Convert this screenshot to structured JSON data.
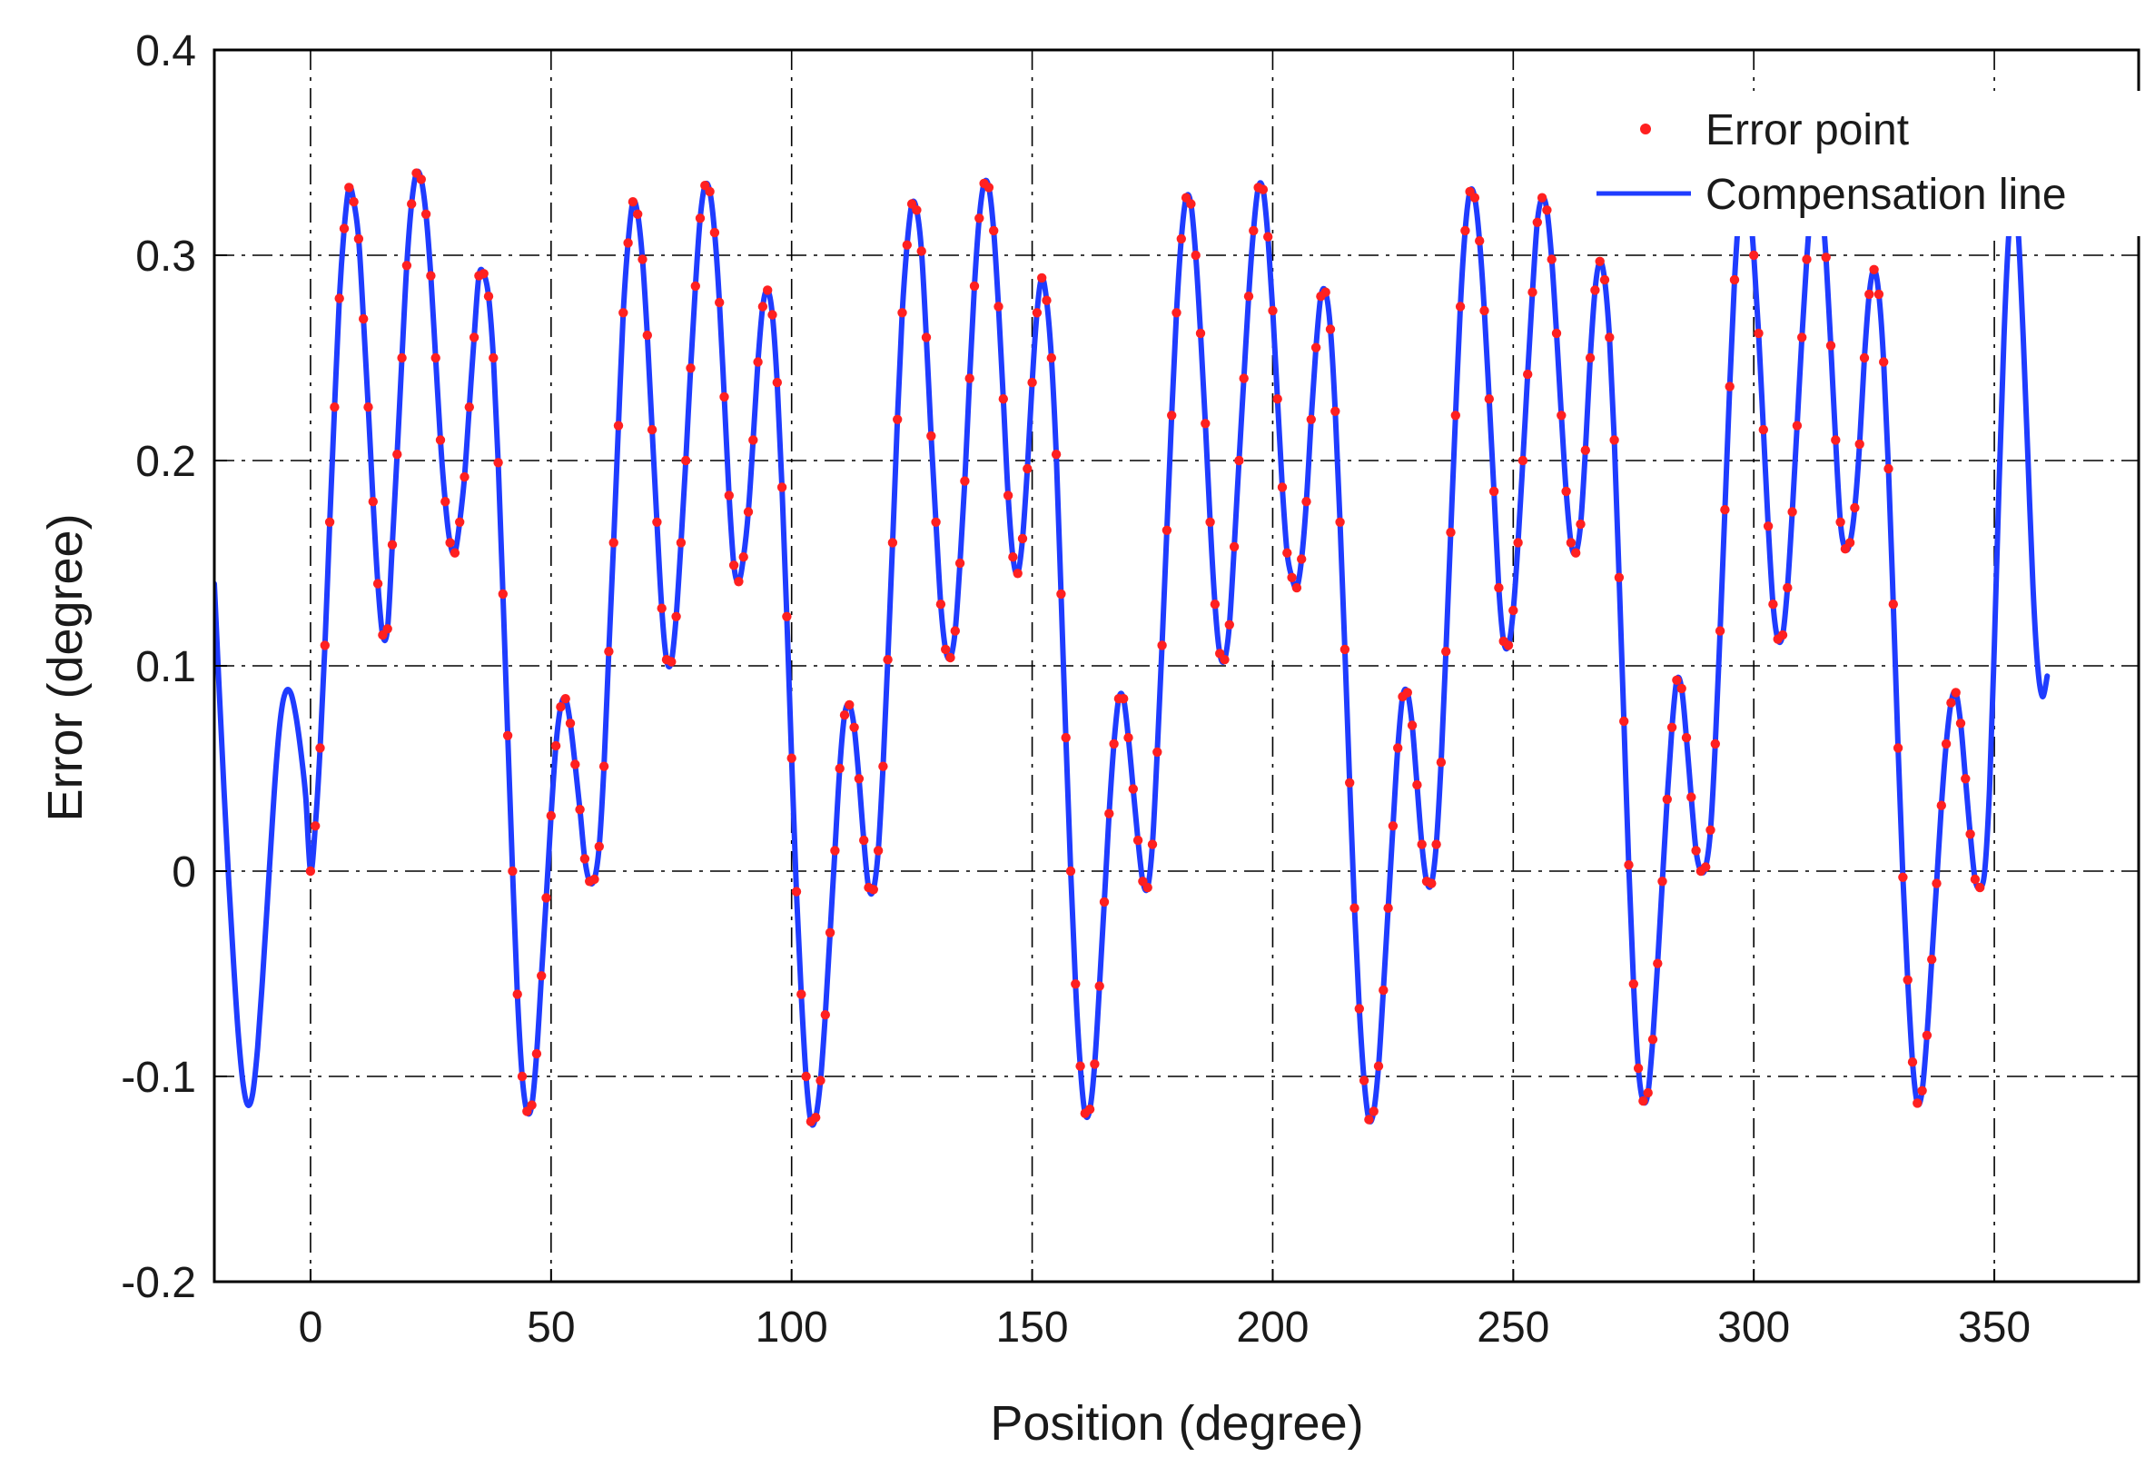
{
  "chart_data": {
    "type": "line",
    "title": "",
    "xlabel": "Position (degree)",
    "ylabel": "Error (degree)",
    "xlim": [
      -20,
      380
    ],
    "ylim": [
      -0.2,
      0.4
    ],
    "xticks": [
      0,
      50,
      100,
      150,
      200,
      250,
      300,
      350
    ],
    "xtick_labels": [
      "0",
      "50",
      "100",
      "150",
      "200",
      "250",
      "300",
      "350"
    ],
    "yticks": [
      -0.2,
      -0.1,
      0,
      0.1,
      0.2,
      0.3,
      0.4
    ],
    "ytick_labels": [
      "-0.2",
      "-0.1",
      "0",
      "0.1",
      "0.2",
      "0.3",
      "0.4"
    ],
    "grid": true,
    "grid_style": "dash-dot",
    "legend": {
      "position": "top-right",
      "entries": [
        "Error point",
        "Compensation line"
      ]
    },
    "series": [
      {
        "name": "Error point",
        "kind": "scatter",
        "color": "#ff2020",
        "x_start": 0,
        "x_step": 1,
        "values": [
          0.0,
          0.022,
          0.06,
          0.11,
          0.17,
          0.226,
          0.279,
          0.313,
          0.333,
          0.326,
          0.308,
          0.269,
          0.226,
          0.18,
          0.14,
          0.115,
          0.118,
          0.159,
          0.203,
          0.25,
          0.295,
          0.325,
          0.34,
          0.337,
          0.32,
          0.29,
          0.25,
          0.21,
          0.18,
          0.16,
          0.155,
          0.17,
          0.192,
          0.226,
          0.26,
          0.29,
          0.291,
          0.28,
          0.25,
          0.199,
          0.135,
          0.066,
          0.0,
          -0.06,
          -0.1,
          -0.117,
          -0.114,
          -0.089,
          -0.051,
          -0.013,
          0.027,
          0.061,
          0.08,
          0.084,
          0.072,
          0.052,
          0.03,
          0.006,
          -0.005,
          -0.004,
          0.012,
          0.051,
          0.107,
          0.16,
          0.217,
          0.272,
          0.306,
          0.326,
          0.32,
          0.298,
          0.261,
          0.215,
          0.17,
          0.128,
          0.103,
          0.102,
          0.124,
          0.16,
          0.2,
          0.245,
          0.285,
          0.318,
          0.334,
          0.331,
          0.311,
          0.277,
          0.231,
          0.183,
          0.149,
          0.141,
          0.153,
          0.175,
          0.21,
          0.248,
          0.275,
          0.283,
          0.271,
          0.238,
          0.187,
          0.124,
          0.055,
          -0.01,
          -0.06,
          -0.1,
          -0.122,
          -0.12,
          -0.102,
          -0.07,
          -0.03,
          0.01,
          0.05,
          0.076,
          0.081,
          0.07,
          0.045,
          0.015,
          -0.008,
          -0.009,
          0.01,
          0.051,
          0.103,
          0.16,
          0.22,
          0.272,
          0.305,
          0.325,
          0.322,
          0.302,
          0.26,
          0.212,
          0.17,
          0.13,
          0.108,
          0.104,
          0.117,
          0.15,
          0.19,
          0.24,
          0.285,
          0.318,
          0.335,
          0.333,
          0.312,
          0.275,
          0.23,
          0.183,
          0.153,
          0.145,
          0.162,
          0.196,
          0.238,
          0.272,
          0.289,
          0.278,
          0.25,
          0.203,
          0.135,
          0.065,
          0.0,
          -0.055,
          -0.095,
          -0.118,
          -0.116,
          -0.094,
          -0.056,
          -0.015,
          0.028,
          0.062,
          0.084,
          0.084,
          0.065,
          0.04,
          0.015,
          -0.005,
          -0.008,
          0.013,
          0.058,
          0.11,
          0.166,
          0.222,
          0.272,
          0.308,
          0.328,
          0.325,
          0.3,
          0.262,
          0.218,
          0.17,
          0.13,
          0.106,
          0.103,
          0.12,
          0.158,
          0.2,
          0.24,
          0.28,
          0.312,
          0.333,
          0.332,
          0.309,
          0.273,
          0.23,
          0.187,
          0.155,
          0.143,
          0.138,
          0.152,
          0.18,
          0.22,
          0.255,
          0.28,
          0.282,
          0.264,
          0.224,
          0.17,
          0.108,
          0.043,
          -0.018,
          -0.067,
          -0.102,
          -0.121,
          -0.117,
          -0.095,
          -0.058,
          -0.018,
          0.022,
          0.06,
          0.085,
          0.087,
          0.071,
          0.042,
          0.013,
          -0.005,
          -0.006,
          0.013,
          0.053,
          0.107,
          0.165,
          0.222,
          0.275,
          0.312,
          0.331,
          0.328,
          0.307,
          0.273,
          0.23,
          0.185,
          0.138,
          0.112,
          0.11,
          0.127,
          0.16,
          0.2,
          0.242,
          0.282,
          0.316,
          0.328,
          0.322,
          0.298,
          0.262,
          0.222,
          0.185,
          0.16,
          0.155,
          0.169,
          0.205,
          0.25,
          0.283,
          0.297,
          0.288,
          0.26,
          0.21,
          0.143,
          0.073,
          0.003,
          -0.055,
          -0.096,
          -0.112,
          -0.108,
          -0.082,
          -0.045,
          -0.005,
          0.035,
          0.07,
          0.093,
          0.089,
          0.065,
          0.036,
          0.01,
          0.0,
          0.002,
          0.02,
          0.062,
          0.117,
          0.176,
          0.236,
          0.288,
          0.322,
          0.336,
          0.328,
          0.3,
          0.262,
          0.215,
          0.168,
          0.13,
          0.113,
          0.115,
          0.138,
          0.175,
          0.217,
          0.26,
          0.298,
          0.326,
          0.336,
          0.328,
          0.299,
          0.256,
          0.21,
          0.17,
          0.157,
          0.16,
          0.177,
          0.208,
          0.25,
          0.281,
          0.293,
          0.281,
          0.248,
          0.196,
          0.13,
          0.06,
          -0.003,
          -0.053,
          -0.093,
          -0.113,
          -0.107,
          -0.08,
          -0.043,
          -0.006,
          0.032,
          0.062,
          0.082,
          0.087,
          0.072,
          0.045,
          0.018,
          -0.004,
          -0.008
        ]
      },
      {
        "name": "Compensation line",
        "kind": "line",
        "color": "#1f3cff",
        "x_start": -20,
        "x_step": 1,
        "values": [
          0.14,
          0.089,
          0.04,
          -0.005,
          -0.045,
          -0.08,
          -0.104,
          -0.114,
          -0.108,
          -0.086,
          -0.053,
          -0.016,
          0.022,
          0.056,
          0.079,
          0.088,
          0.086,
          0.075,
          0.058,
          0.036,
          0.0,
          0.022,
          0.06,
          0.11,
          0.17,
          0.226,
          0.279,
          0.313,
          0.333,
          0.326,
          0.308,
          0.269,
          0.226,
          0.18,
          0.14,
          0.115,
          0.118,
          0.159,
          0.203,
          0.25,
          0.295,
          0.325,
          0.34,
          0.337,
          0.32,
          0.29,
          0.25,
          0.21,
          0.18,
          0.16,
          0.155,
          0.17,
          0.192,
          0.226,
          0.26,
          0.29,
          0.291,
          0.28,
          0.25,
          0.199,
          0.135,
          0.066,
          0.0,
          -0.06,
          -0.1,
          -0.117,
          -0.114,
          -0.089,
          -0.051,
          -0.013,
          0.027,
          0.061,
          0.08,
          0.084,
          0.072,
          0.052,
          0.03,
          0.006,
          -0.005,
          -0.004,
          0.012,
          0.051,
          0.107,
          0.16,
          0.217,
          0.272,
          0.306,
          0.326,
          0.32,
          0.298,
          0.261,
          0.215,
          0.17,
          0.128,
          0.103,
          0.102,
          0.124,
          0.16,
          0.2,
          0.245,
          0.285,
          0.318,
          0.334,
          0.331,
          0.311,
          0.277,
          0.231,
          0.183,
          0.149,
          0.141,
          0.153,
          0.175,
          0.21,
          0.248,
          0.275,
          0.283,
          0.271,
          0.238,
          0.187,
          0.124,
          0.055,
          -0.01,
          -0.06,
          -0.1,
          -0.122,
          -0.12,
          -0.102,
          -0.07,
          -0.03,
          0.01,
          0.05,
          0.076,
          0.081,
          0.07,
          0.045,
          0.015,
          -0.008,
          -0.009,
          0.01,
          0.051,
          0.103,
          0.16,
          0.22,
          0.272,
          0.305,
          0.325,
          0.322,
          0.302,
          0.26,
          0.212,
          0.17,
          0.13,
          0.108,
          0.104,
          0.117,
          0.15,
          0.19,
          0.24,
          0.285,
          0.318,
          0.335,
          0.333,
          0.312,
          0.275,
          0.23,
          0.183,
          0.153,
          0.145,
          0.162,
          0.196,
          0.238,
          0.272,
          0.289,
          0.278,
          0.25,
          0.203,
          0.135,
          0.065,
          0.0,
          -0.055,
          -0.095,
          -0.118,
          -0.116,
          -0.094,
          -0.056,
          -0.015,
          0.028,
          0.062,
          0.084,
          0.084,
          0.065,
          0.04,
          0.015,
          -0.005,
          -0.008,
          0.013,
          0.058,
          0.11,
          0.166,
          0.222,
          0.272,
          0.308,
          0.328,
          0.325,
          0.3,
          0.262,
          0.218,
          0.17,
          0.13,
          0.106,
          0.103,
          0.12,
          0.158,
          0.2,
          0.24,
          0.28,
          0.312,
          0.333,
          0.332,
          0.309,
          0.273,
          0.23,
          0.187,
          0.155,
          0.143,
          0.138,
          0.152,
          0.18,
          0.22,
          0.255,
          0.28,
          0.282,
          0.264,
          0.224,
          0.17,
          0.108,
          0.043,
          -0.018,
          -0.067,
          -0.102,
          -0.121,
          -0.117,
          -0.095,
          -0.058,
          -0.018,
          0.022,
          0.06,
          0.085,
          0.087,
          0.071,
          0.042,
          0.013,
          -0.005,
          -0.006,
          0.013,
          0.053,
          0.107,
          0.165,
          0.222,
          0.275,
          0.312,
          0.331,
          0.328,
          0.307,
          0.273,
          0.23,
          0.185,
          0.138,
          0.112,
          0.11,
          0.127,
          0.16,
          0.2,
          0.242,
          0.282,
          0.316,
          0.328,
          0.322,
          0.298,
          0.262,
          0.222,
          0.185,
          0.16,
          0.155,
          0.169,
          0.205,
          0.25,
          0.283,
          0.297,
          0.288,
          0.26,
          0.21,
          0.143,
          0.073,
          0.003,
          -0.055,
          -0.096,
          -0.112,
          -0.108,
          -0.082,
          -0.045,
          -0.005,
          0.035,
          0.07,
          0.093,
          0.089,
          0.065,
          0.036,
          0.01,
          0.0,
          0.002,
          0.02,
          0.062,
          0.117,
          0.176,
          0.236,
          0.288,
          0.322,
          0.336,
          0.328,
          0.3,
          0.262,
          0.215,
          0.168,
          0.13,
          0.113,
          0.115,
          0.138,
          0.175,
          0.217,
          0.26,
          0.298,
          0.326,
          0.336,
          0.328,
          0.299,
          0.256,
          0.21,
          0.17,
          0.157,
          0.16,
          0.177,
          0.208,
          0.25,
          0.281,
          0.293,
          0.281,
          0.248,
          0.196,
          0.13,
          0.06,
          -0.003,
          -0.053,
          -0.093,
          -0.113,
          -0.107,
          -0.08,
          -0.043,
          -0.006,
          0.032,
          0.062,
          0.082,
          0.087,
          0.072,
          0.045,
          0.018,
          -0.004,
          -0.008,
          0.0,
          0.04,
          0.11,
          0.19,
          0.26,
          0.31,
          0.33,
          0.31,
          0.26,
          0.2,
          0.14,
          0.1,
          0.085,
          0.095
        ]
      }
    ]
  }
}
